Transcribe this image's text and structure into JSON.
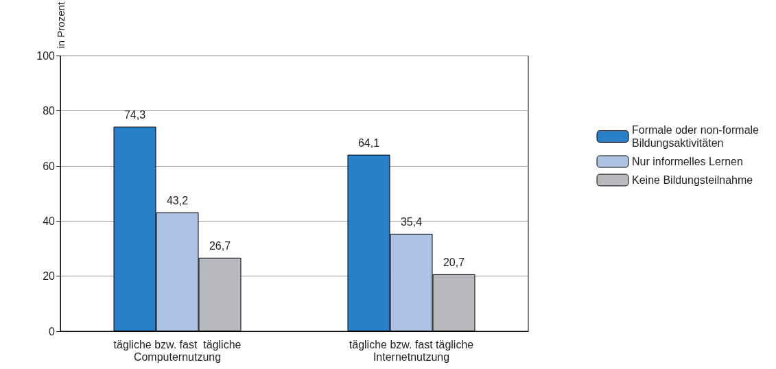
{
  "chart_data": {
    "type": "bar",
    "ylabel": "in Prozent",
    "categories": [
      "tägliche bzw. fast  tägliche\nComputernutzung",
      "tägliche bzw. fast tägliche\nInternetnutzung"
    ],
    "series": [
      {
        "name": "Formale oder non-formale\nBildungsaktivitäten",
        "color": "#2a7fc9",
        "values": [
          74.3,
          64.1
        ],
        "value_labels": [
          "74,3",
          "64,1"
        ]
      },
      {
        "name": "Nur informelles Lernen",
        "color": "#adc3e4",
        "values": [
          43.2,
          35.4
        ],
        "value_labels": [
          "43,2",
          "35,4"
        ]
      },
      {
        "name": "Keine Bildungsteilnahme",
        "color": "#b9babd",
        "values": [
          26.7,
          20.7
        ],
        "value_labels": [
          "26,7",
          "20,7"
        ]
      }
    ],
    "ylim": [
      0,
      100
    ],
    "yticks": [
      0,
      20,
      40,
      60,
      80,
      100
    ],
    "grid": "y",
    "legend": "right"
  }
}
